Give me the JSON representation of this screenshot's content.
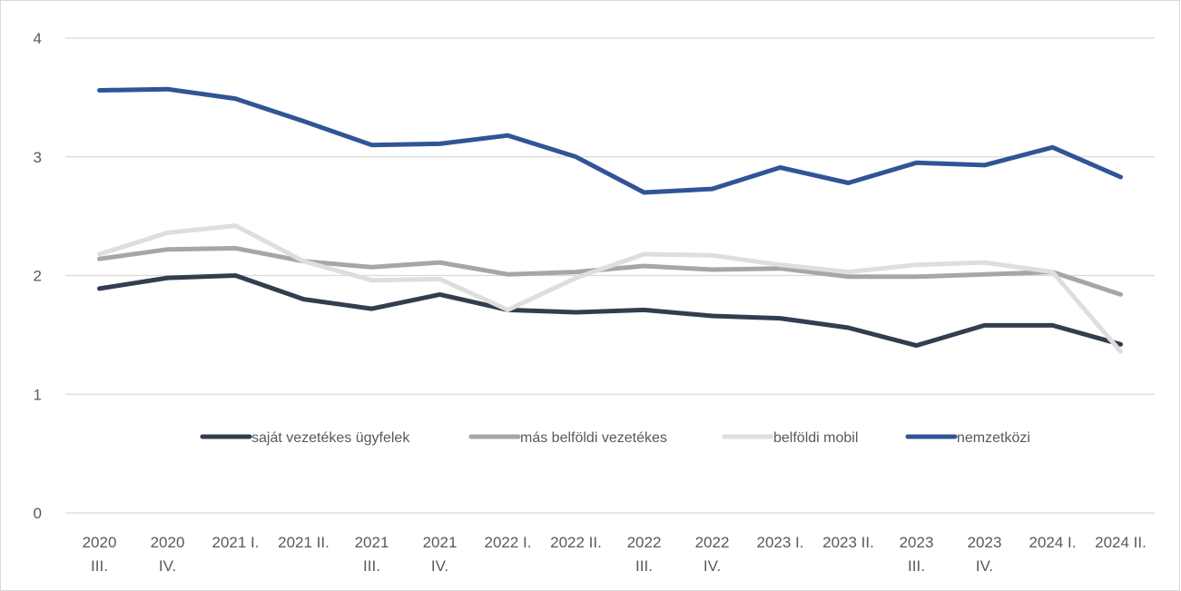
{
  "chart_data": {
    "type": "line",
    "title": "",
    "xlabel": "",
    "ylabel": "",
    "ylim": [
      0,
      4
    ],
    "yticks": [
      "0",
      "1",
      "2",
      "3",
      "4"
    ],
    "grid": true,
    "legend_position": "inside-bottom-center",
    "categories": [
      [
        "2020",
        "III."
      ],
      [
        "2020",
        "IV."
      ],
      [
        "2021 I."
      ],
      [
        "2021 II."
      ],
      [
        "2021",
        "III."
      ],
      [
        "2021",
        "IV."
      ],
      [
        "2022 I."
      ],
      [
        "2022 II."
      ],
      [
        "2022",
        "III."
      ],
      [
        "2022",
        "IV."
      ],
      [
        "2023 I."
      ],
      [
        "2023 II."
      ],
      [
        "2023",
        "III."
      ],
      [
        "2023",
        "IV."
      ],
      [
        "2024 I."
      ],
      [
        "2024 II."
      ]
    ],
    "series": [
      {
        "name": "saját vezetékes ügyfelek",
        "color": "#323d50",
        "values": [
          1.89,
          1.98,
          2.0,
          1.8,
          1.72,
          1.84,
          1.71,
          1.69,
          1.71,
          1.66,
          1.64,
          1.56,
          1.41,
          1.58,
          1.58,
          1.42
        ]
      },
      {
        "name": "más belföldi vezetékes",
        "color": "#a6a6a6",
        "values": [
          2.14,
          2.22,
          2.23,
          2.12,
          2.07,
          2.11,
          2.01,
          2.03,
          2.08,
          2.05,
          2.06,
          1.99,
          1.99,
          2.01,
          2.03,
          1.84
        ]
      },
      {
        "name": "belföldi mobil",
        "color": "#dedede",
        "values": [
          2.18,
          2.36,
          2.42,
          2.12,
          1.96,
          1.97,
          1.71,
          1.98,
          2.18,
          2.17,
          2.09,
          2.03,
          2.09,
          2.11,
          2.03,
          1.36
        ]
      },
      {
        "name": "nemzetközi",
        "color": "#2f5597",
        "values": [
          3.56,
          3.57,
          3.49,
          3.3,
          3.1,
          3.11,
          3.18,
          3.0,
          2.7,
          2.73,
          2.91,
          2.78,
          2.95,
          2.93,
          3.08,
          2.83
        ]
      }
    ]
  }
}
